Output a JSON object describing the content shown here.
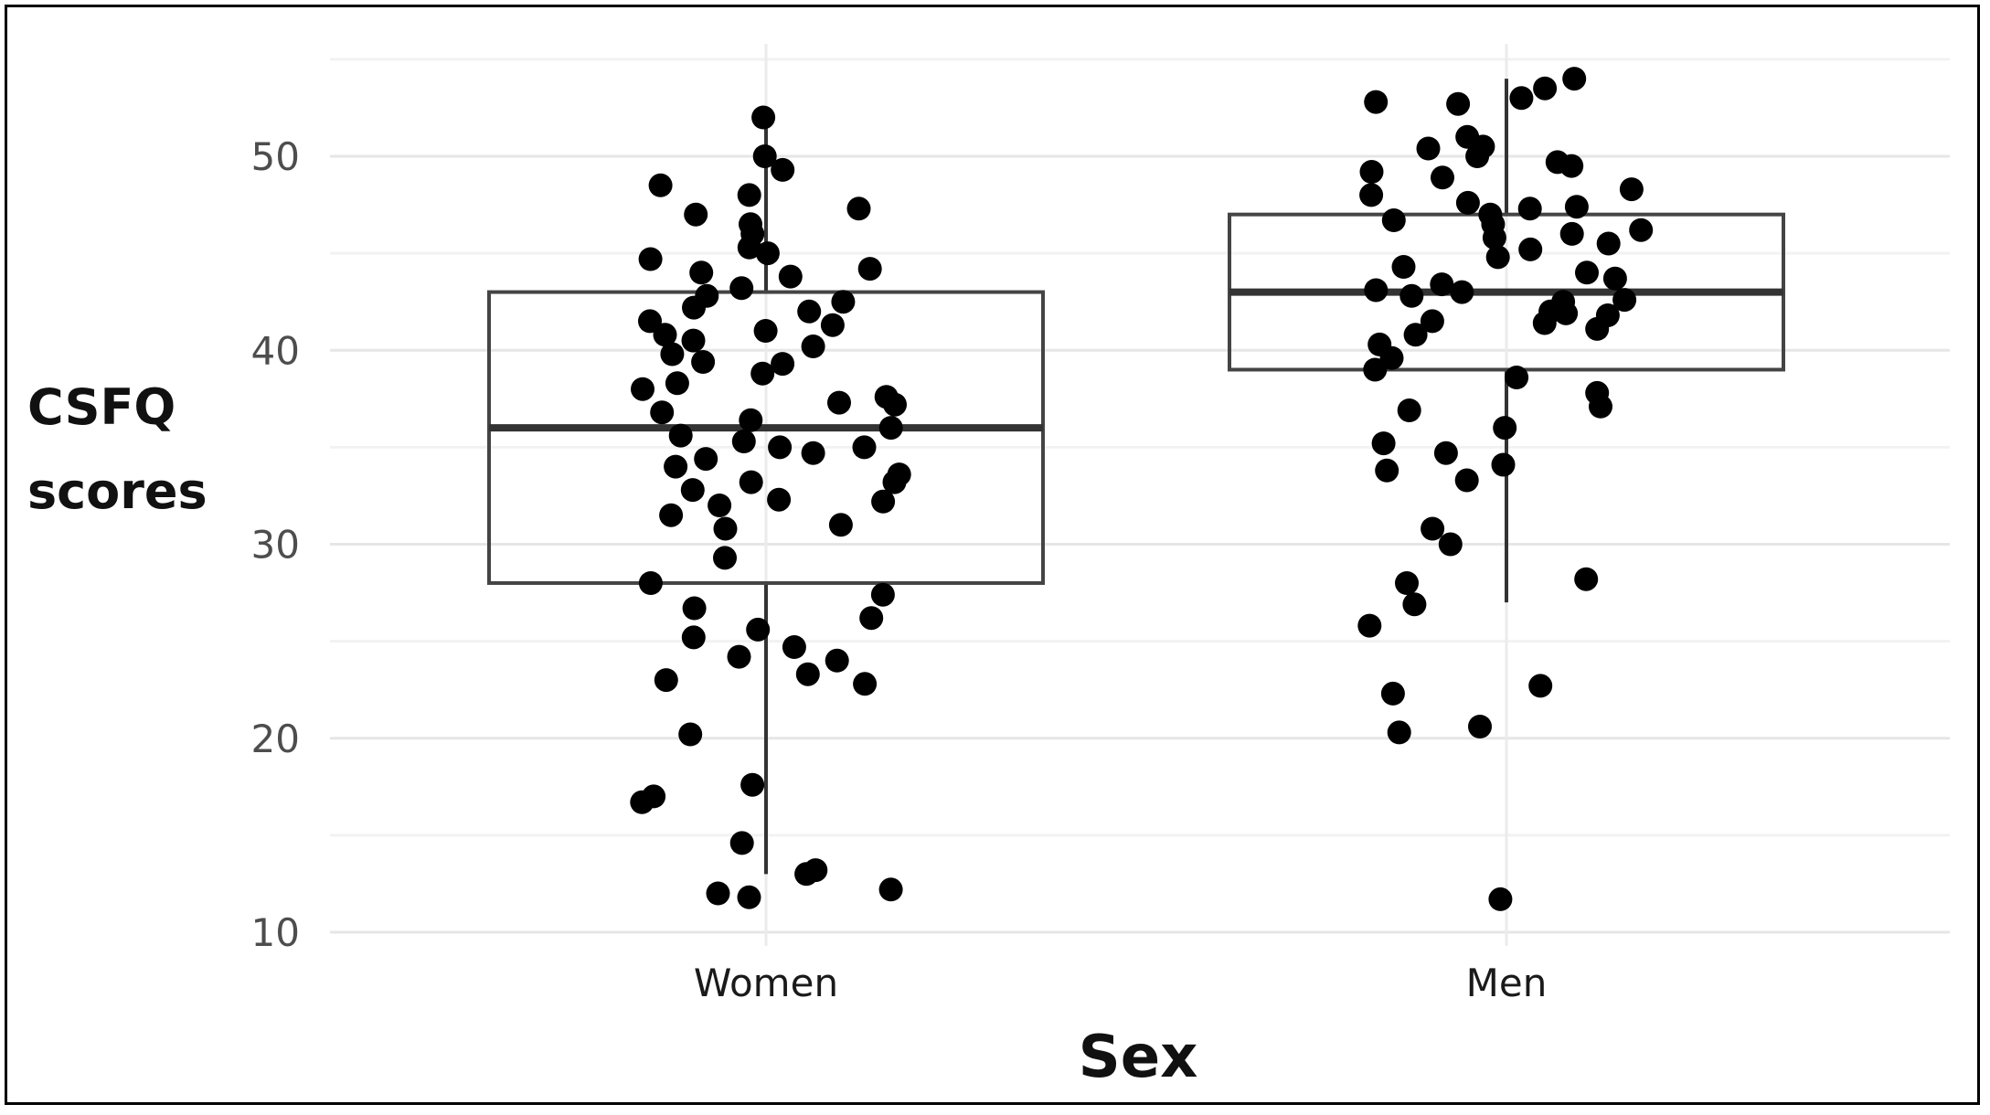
{
  "chart_data": {
    "type": "box",
    "xlabel": "Sex",
    "ylabel_lines": [
      "CSFQ",
      "scores"
    ],
    "categories": [
      "Women",
      "Men"
    ],
    "y_ticks": [
      10,
      20,
      30,
      40,
      50
    ],
    "ylim": [
      9,
      55
    ],
    "grid": true,
    "boxes": [
      {
        "category": "Women",
        "q1": 28,
        "median": 36,
        "q3": 43,
        "whisker_low": 13,
        "whisker_high": 52
      },
      {
        "category": "Men",
        "q1": 39,
        "median": 43,
        "q3": 47,
        "whisker_low": 27,
        "whisker_high": 54
      }
    ],
    "points": [
      {
        "category": "Women",
        "values": [
          52,
          49.3,
          48.5,
          47,
          46.5,
          45,
          44.7,
          44.2,
          43.8,
          43.2,
          42.8,
          42.5,
          42,
          41.5,
          41,
          40.5,
          40.2,
          39.8,
          39.3,
          38.8,
          38.3,
          38,
          37.6,
          37.2,
          36.8,
          36.4,
          36,
          35.6,
          35.3,
          35,
          34.7,
          34.4,
          34,
          33.6,
          33.2,
          32.8,
          32.3,
          32,
          31.5,
          31,
          30.8,
          29.3,
          28,
          27.4,
          26.7,
          26.2,
          25.6,
          25.2,
          24.7,
          24.2,
          24,
          23.3,
          23,
          20.2,
          17.6,
          17,
          16.7,
          14.6,
          13.2,
          13,
          12.2,
          12,
          11.8,
          50,
          48,
          47.3,
          46,
          45.3,
          44,
          42.2,
          41.3,
          40.8,
          39.4,
          37.3,
          35,
          33.2,
          32.2,
          22.8
        ]
      },
      {
        "category": "Men",
        "values": [
          54,
          53.5,
          53,
          52.8,
          52.7,
          51,
          50.4,
          50,
          49.7,
          49.5,
          48.9,
          48.3,
          48,
          47.6,
          47.3,
          47,
          46.7,
          46.2,
          45.8,
          45.5,
          45.2,
          44.8,
          44.3,
          44,
          43.7,
          43.4,
          43.1,
          42.8,
          42.5,
          42.2,
          42,
          41.8,
          41.5,
          41.1,
          40.8,
          40.3,
          39.6,
          39,
          38.6,
          37.8,
          37.1,
          36.9,
          36,
          35.2,
          34.7,
          34.1,
          33.8,
          33.3,
          30.8,
          30,
          28.2,
          28,
          26.9,
          25.8,
          22.7,
          22.3,
          20.6,
          20.3,
          11.7,
          50.5,
          49.2,
          47.4,
          46.5,
          46,
          43,
          42.6,
          41.9,
          41.4
        ]
      }
    ]
  }
}
